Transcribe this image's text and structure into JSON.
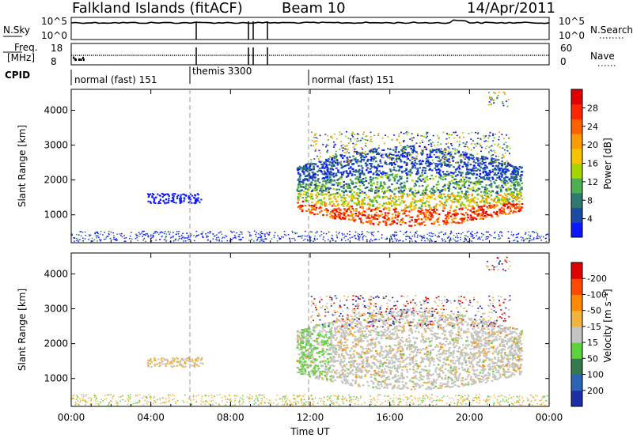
{
  "header": {
    "station": "Falkland Islands (fitACF)",
    "beam": "Beam 10",
    "date": "14/Apr/2011"
  },
  "aux": {
    "nsky_label": "N.Sky",
    "nsky_ticks": [
      "10^5",
      "10^0"
    ],
    "nsearch_label": "N.Search",
    "nsearch_ticks": [
      "10^5",
      "10^0"
    ],
    "freq_label_1": "Freq.",
    "freq_label_2": "[MHz]",
    "freq_ticks": [
      "18",
      "8"
    ],
    "nave_label": "Nave",
    "nave_ticks": [
      "60",
      "0"
    ],
    "cpid_label": "CPID",
    "cpid_segments": [
      {
        "label": "normal (fast) 151",
        "start_hour": 0
      },
      {
        "label": "themis 3300",
        "start_hour": 6
      },
      {
        "label": "normal (fast) 151",
        "start_hour": 12
      }
    ]
  },
  "chart_data": [
    {
      "type": "heatmap",
      "name": "power",
      "ylabel": "Slant Range [km]",
      "yticks": [
        "1000",
        "2000",
        "3000",
        "4000"
      ],
      "ylim": [
        200,
        4600
      ],
      "xlim_hours": [
        0,
        24
      ],
      "colorbar_label": "Power [dB]",
      "colorbar_ticks": [
        "4",
        "8",
        "12",
        "16",
        "20",
        "24",
        "28"
      ],
      "colorbar_colors": [
        "#0a17ff",
        "#1c4ba6",
        "#2e7a70",
        "#4caf50",
        "#a8d400",
        "#f5c400",
        "#ff9a00",
        "#ff6000",
        "#ff2600",
        "#e10000"
      ],
      "dashed_lines_hours": [
        6,
        12
      ]
    },
    {
      "type": "heatmap",
      "name": "velocity",
      "ylabel": "Slant Range [km]",
      "yticks": [
        "1000",
        "2000",
        "3000",
        "4000"
      ],
      "ylim": [
        200,
        4600
      ],
      "xlim_hours": [
        0,
        24
      ],
      "colorbar_label": "Velocity [m s⁻¹]",
      "colorbar_ticks": [
        "200",
        "100",
        "50",
        "15",
        "-15",
        "-50",
        "-100",
        "-200"
      ],
      "colorbar_colors": [
        "#1e2ea8",
        "#2a64b8",
        "#357a4c",
        "#5ed23a",
        "#c4c4c0",
        "#f0b43c",
        "#ff8a00",
        "#ff4b00",
        "#e00000"
      ],
      "dashed_lines_hours": [
        6,
        12
      ]
    }
  ],
  "xaxis": {
    "label": "Time UT",
    "ticks": [
      "00:00",
      "04:00",
      "08:00",
      "12:00",
      "16:00",
      "20:00",
      "00:00"
    ]
  }
}
